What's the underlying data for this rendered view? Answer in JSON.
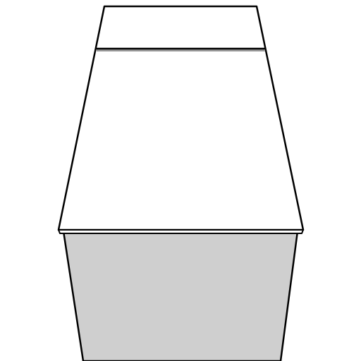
{
  "scene": {
    "description_free": true,
    "colors": {
      "background": "#ffffff",
      "top_face": "#ffffff",
      "front_face": "#cfcfcf",
      "outline": "#000000",
      "seam_highlight": "#9a9a9a"
    }
  }
}
